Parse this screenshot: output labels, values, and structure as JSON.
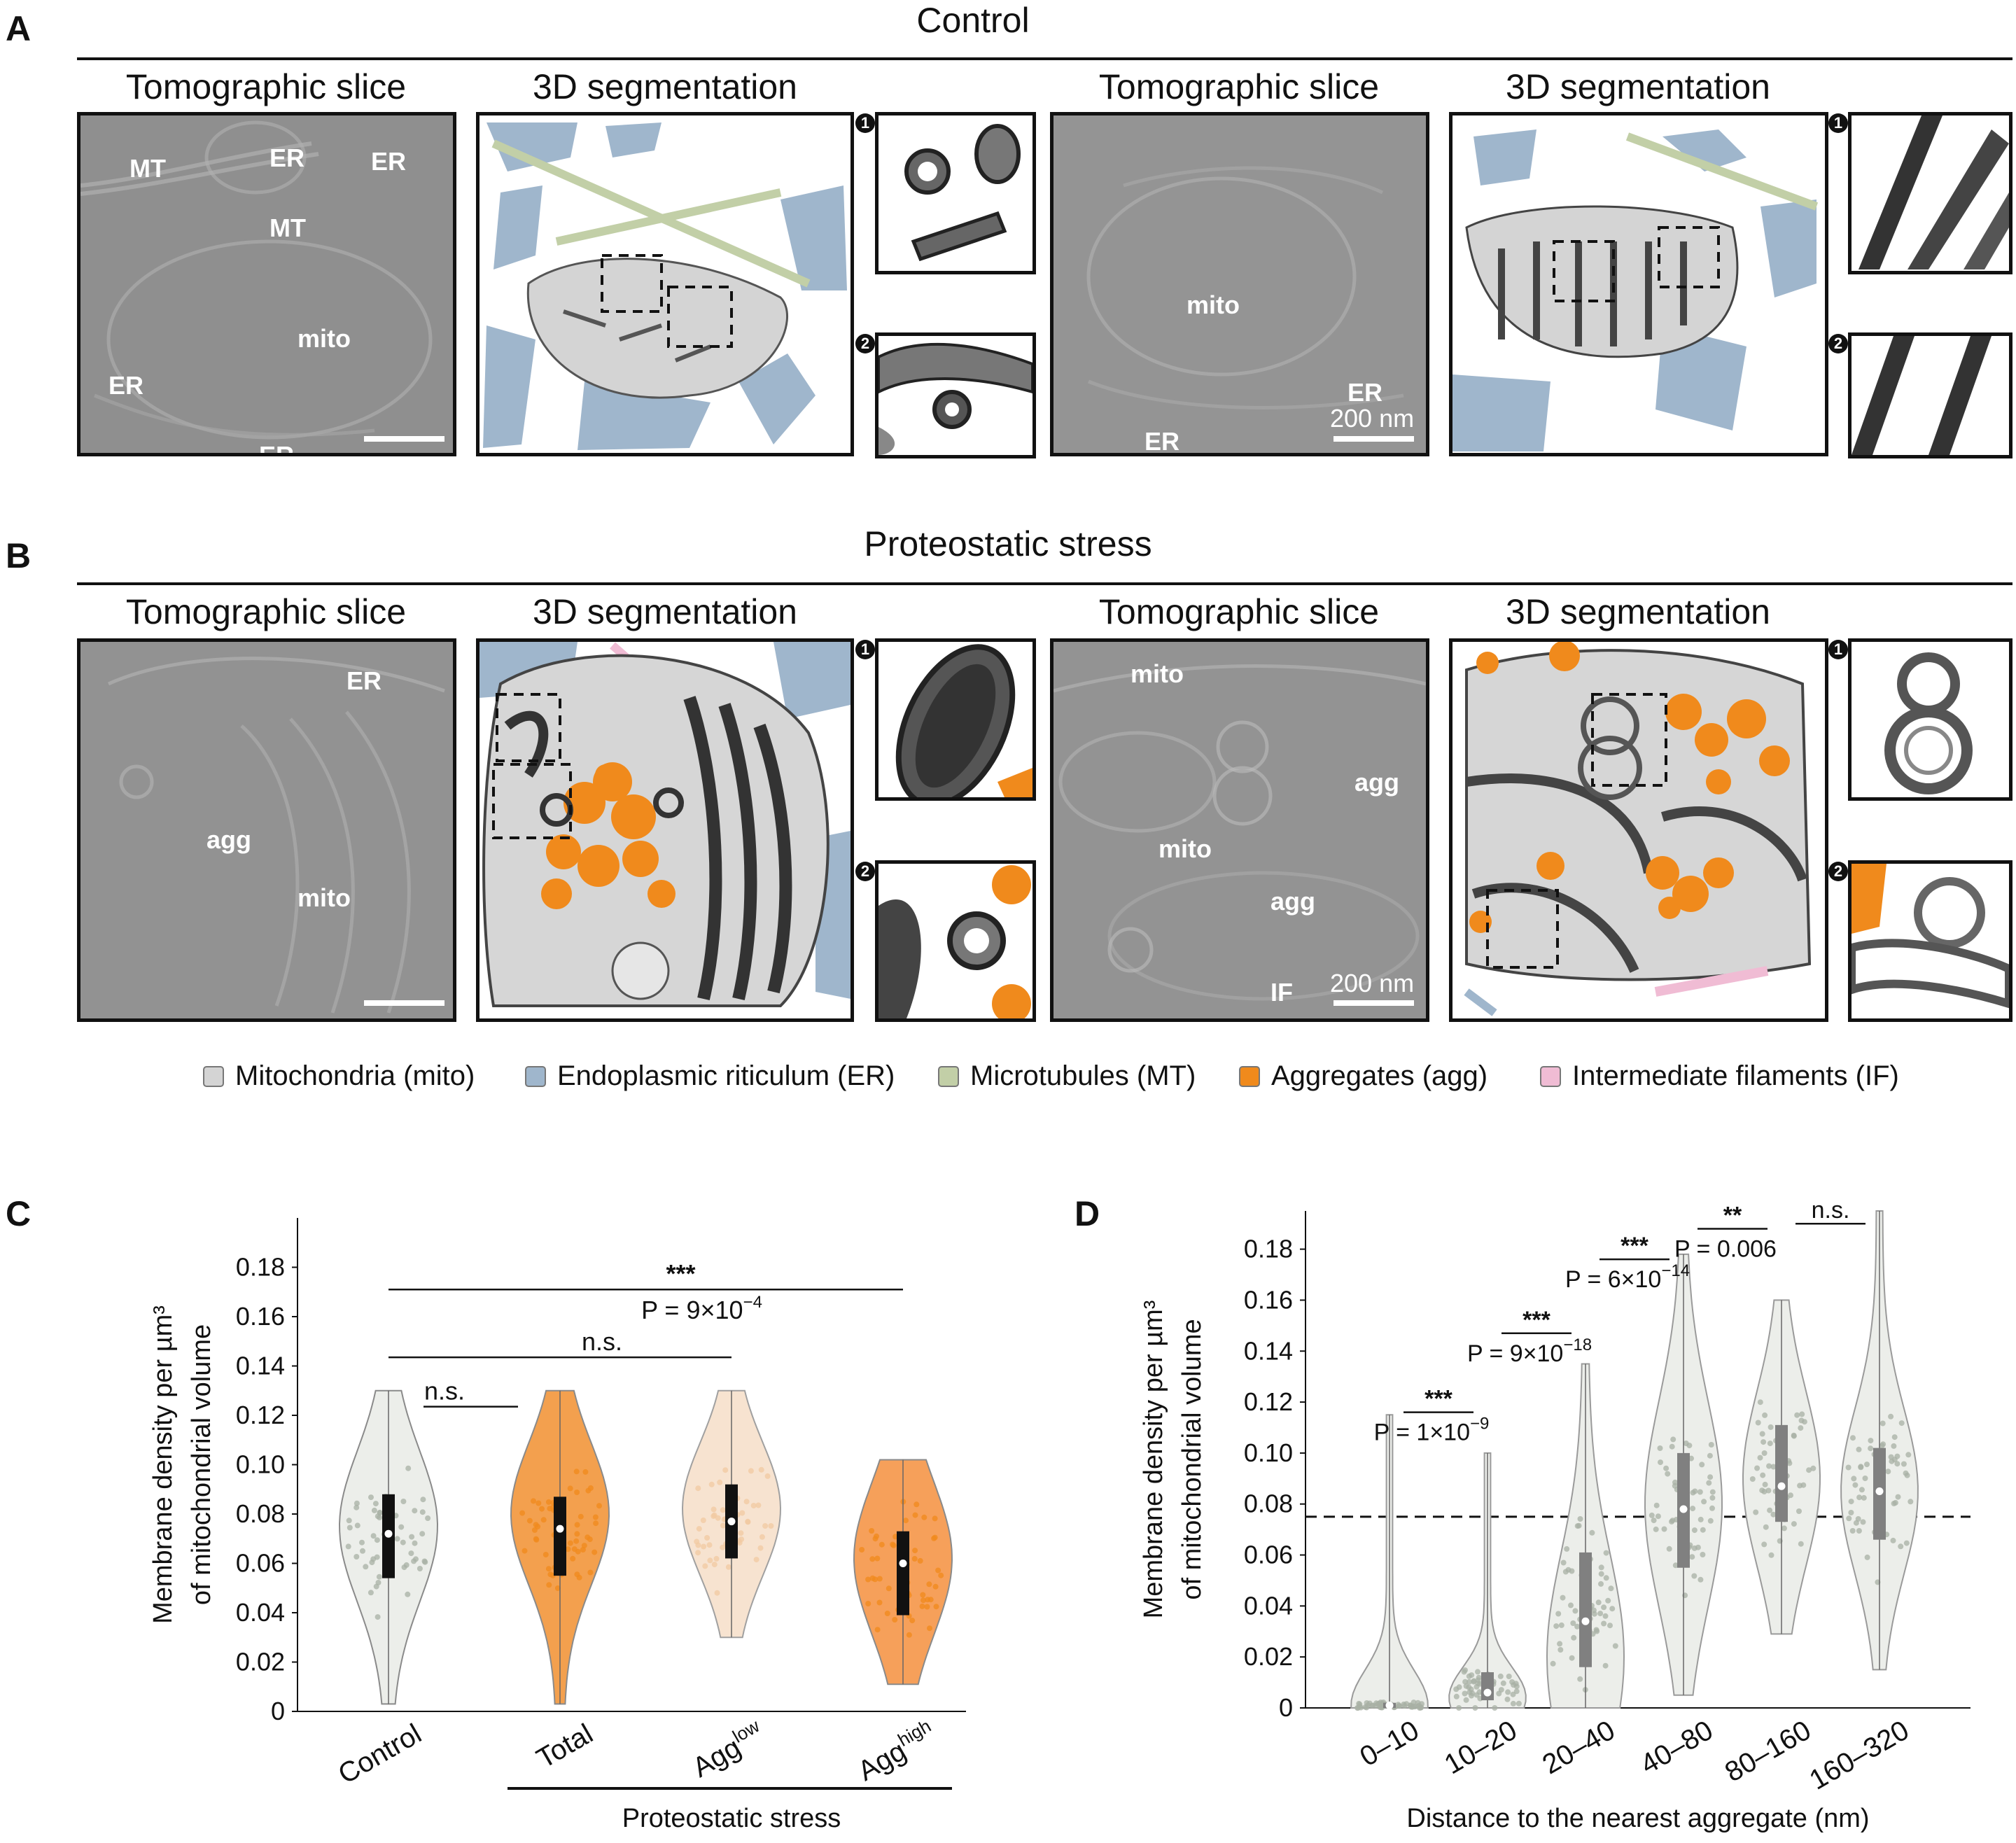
{
  "panel_a": {
    "letter": "A",
    "group_title": "Control",
    "subtitles": [
      "Tomographic slice",
      "3D segmentation",
      "Tomographic slice",
      "3D segmentation"
    ],
    "tomo1_labels": [
      "MT",
      "ER",
      "ER",
      "MT",
      "mito",
      "ER",
      "ER"
    ],
    "tomo2_labels": [
      "mito",
      "ER",
      "ER"
    ],
    "scale_text": "200 nm",
    "inset_numbers": [
      "1",
      "2"
    ]
  },
  "panel_b": {
    "letter": "B",
    "group_title": "Proteostatic stress",
    "subtitles": [
      "Tomographic slice",
      "3D segmentation",
      "Tomographic slice",
      "3D segmentation"
    ],
    "tomo1_labels": [
      "ER",
      "agg",
      "mito"
    ],
    "tomo2_labels": [
      "mito",
      "agg",
      "mito",
      "agg",
      "IF"
    ],
    "scale_text": "200 nm",
    "inset_numbers": [
      "1",
      "2"
    ]
  },
  "legend": [
    {
      "label": "Mitochondria (mito)",
      "color": "#d4d4d4"
    },
    {
      "label": "Endoplasmic riticulum (ER)",
      "color": "#9fb6cc"
    },
    {
      "label": "Microtubules (MT)",
      "color": "#c2cfa7"
    },
    {
      "label": "Aggregates (agg)",
      "color": "#f08a1c"
    },
    {
      "label": "Intermediate filaments (IF)",
      "color": "#f0bcd4"
    }
  ],
  "colors": {
    "orange": "#f08a1c",
    "light_orange": "#f3d9c0",
    "gray_fill": "#eceeea",
    "gray_dot": "#a8b0a4",
    "er_blue": "#9fb6cc",
    "mt_green": "#c2cfa7",
    "if_pink": "#f0bcd4"
  },
  "chart_data": [
    {
      "panel": "C",
      "type": "violin",
      "ylabel_line1": "Membrane density per µm³",
      "ylabel_line2": "of mitochondrial volume",
      "categories": [
        "Control",
        "Total",
        "Agglow",
        "Agghigh"
      ],
      "category_labels": [
        {
          "base": "Control",
          "sup": ""
        },
        {
          "base": "Total",
          "sup": ""
        },
        {
          "base": "Agg",
          "sup": "low"
        },
        {
          "base": "Agg",
          "sup": "high"
        }
      ],
      "group_label": "Proteostatic stress",
      "yticks": [
        "0",
        "0.02",
        "0.04",
        "0.06",
        "0.08",
        "0.10",
        "0.12",
        "0.14",
        "0.16",
        "0.18"
      ],
      "ylim": [
        0,
        0.2
      ],
      "series": [
        {
          "name": "Control",
          "min": 0.003,
          "max": 0.13,
          "q1": 0.054,
          "median": 0.072,
          "q3": 0.088,
          "mode": 0.075,
          "color": "#eceeea"
        },
        {
          "name": "Total",
          "min": 0.003,
          "max": 0.13,
          "q1": 0.055,
          "median": 0.074,
          "q3": 0.087,
          "mode": 0.08,
          "color": "#f3a04e"
        },
        {
          "name": "Agglow",
          "min": 0.03,
          "max": 0.13,
          "q1": 0.062,
          "median": 0.077,
          "q3": 0.092,
          "mode": 0.082,
          "color": "#f7e3d0"
        },
        {
          "name": "Agghigh",
          "min": 0.011,
          "max": 0.102,
          "q1": 0.039,
          "median": 0.06,
          "q3": 0.073,
          "mode": 0.062,
          "color": "#f6a05a"
        }
      ],
      "annotations": [
        {
          "text": "n.s.",
          "from": 0,
          "to": 1,
          "y": 0.1235
        },
        {
          "text": "n.s.",
          "from": 0,
          "to": 2,
          "y": 0.1435
        },
        {
          "text": "***",
          "p_text": "P = 9×10",
          "p_sup": "−4",
          "from": 0,
          "to": 3,
          "y": 0.171
        }
      ]
    },
    {
      "panel": "D",
      "type": "violin",
      "ylabel_line1": "Membrane density per µm³",
      "ylabel_line2": "of mitochondrial volume",
      "xlabel": "Distance to the nearest aggregate (nm)",
      "categories": [
        "0–10",
        "10–20",
        "20–40",
        "40–80",
        "80–160",
        "160–320"
      ],
      "yticks": [
        "0",
        "0.02",
        "0.04",
        "0.06",
        "0.08",
        "0.10",
        "0.12",
        "0.14",
        "0.16",
        "0.18"
      ],
      "ylim": [
        0,
        0.195
      ],
      "reference_line": 0.075,
      "series": [
        {
          "name": "0–10",
          "min": 0,
          "max": 0.115,
          "q1": 0.0,
          "median": 0.001,
          "q3": 0.002,
          "mode": 0.001
        },
        {
          "name": "10–20",
          "min": 0,
          "max": 0.1,
          "q1": 0.003,
          "median": 0.006,
          "q3": 0.014,
          "mode": 0.004
        },
        {
          "name": "20–40",
          "min": 0,
          "max": 0.135,
          "q1": 0.016,
          "median": 0.034,
          "q3": 0.061,
          "mode": 0.02
        },
        {
          "name": "40–80",
          "min": 0.005,
          "max": 0.178,
          "q1": 0.055,
          "median": 0.078,
          "q3": 0.1,
          "mode": 0.08
        },
        {
          "name": "80–160",
          "min": 0.029,
          "max": 0.16,
          "q1": 0.073,
          "median": 0.087,
          "q3": 0.111,
          "mode": 0.09
        },
        {
          "name": "160–320",
          "min": 0.015,
          "max": 0.195,
          "q1": 0.066,
          "median": 0.085,
          "q3": 0.102,
          "mode": 0.085
        }
      ],
      "annotations": [
        {
          "stars": "***",
          "p_text": "P = 1×10",
          "p_sup": "−9",
          "from": 0,
          "to": 1
        },
        {
          "stars": "***",
          "p_text": "P = 9×10",
          "p_sup": "−18",
          "from": 1,
          "to": 2
        },
        {
          "stars": "***",
          "p_text": "P = 6×10",
          "p_sup": "−14",
          "from": 2,
          "to": 3
        },
        {
          "stars": "**",
          "p_text": "P = 0.006",
          "p_sup": "",
          "from": 3,
          "to": 4
        },
        {
          "stars": "n.s.",
          "p_text": "",
          "p_sup": "",
          "from": 4,
          "to": 5
        }
      ]
    }
  ]
}
